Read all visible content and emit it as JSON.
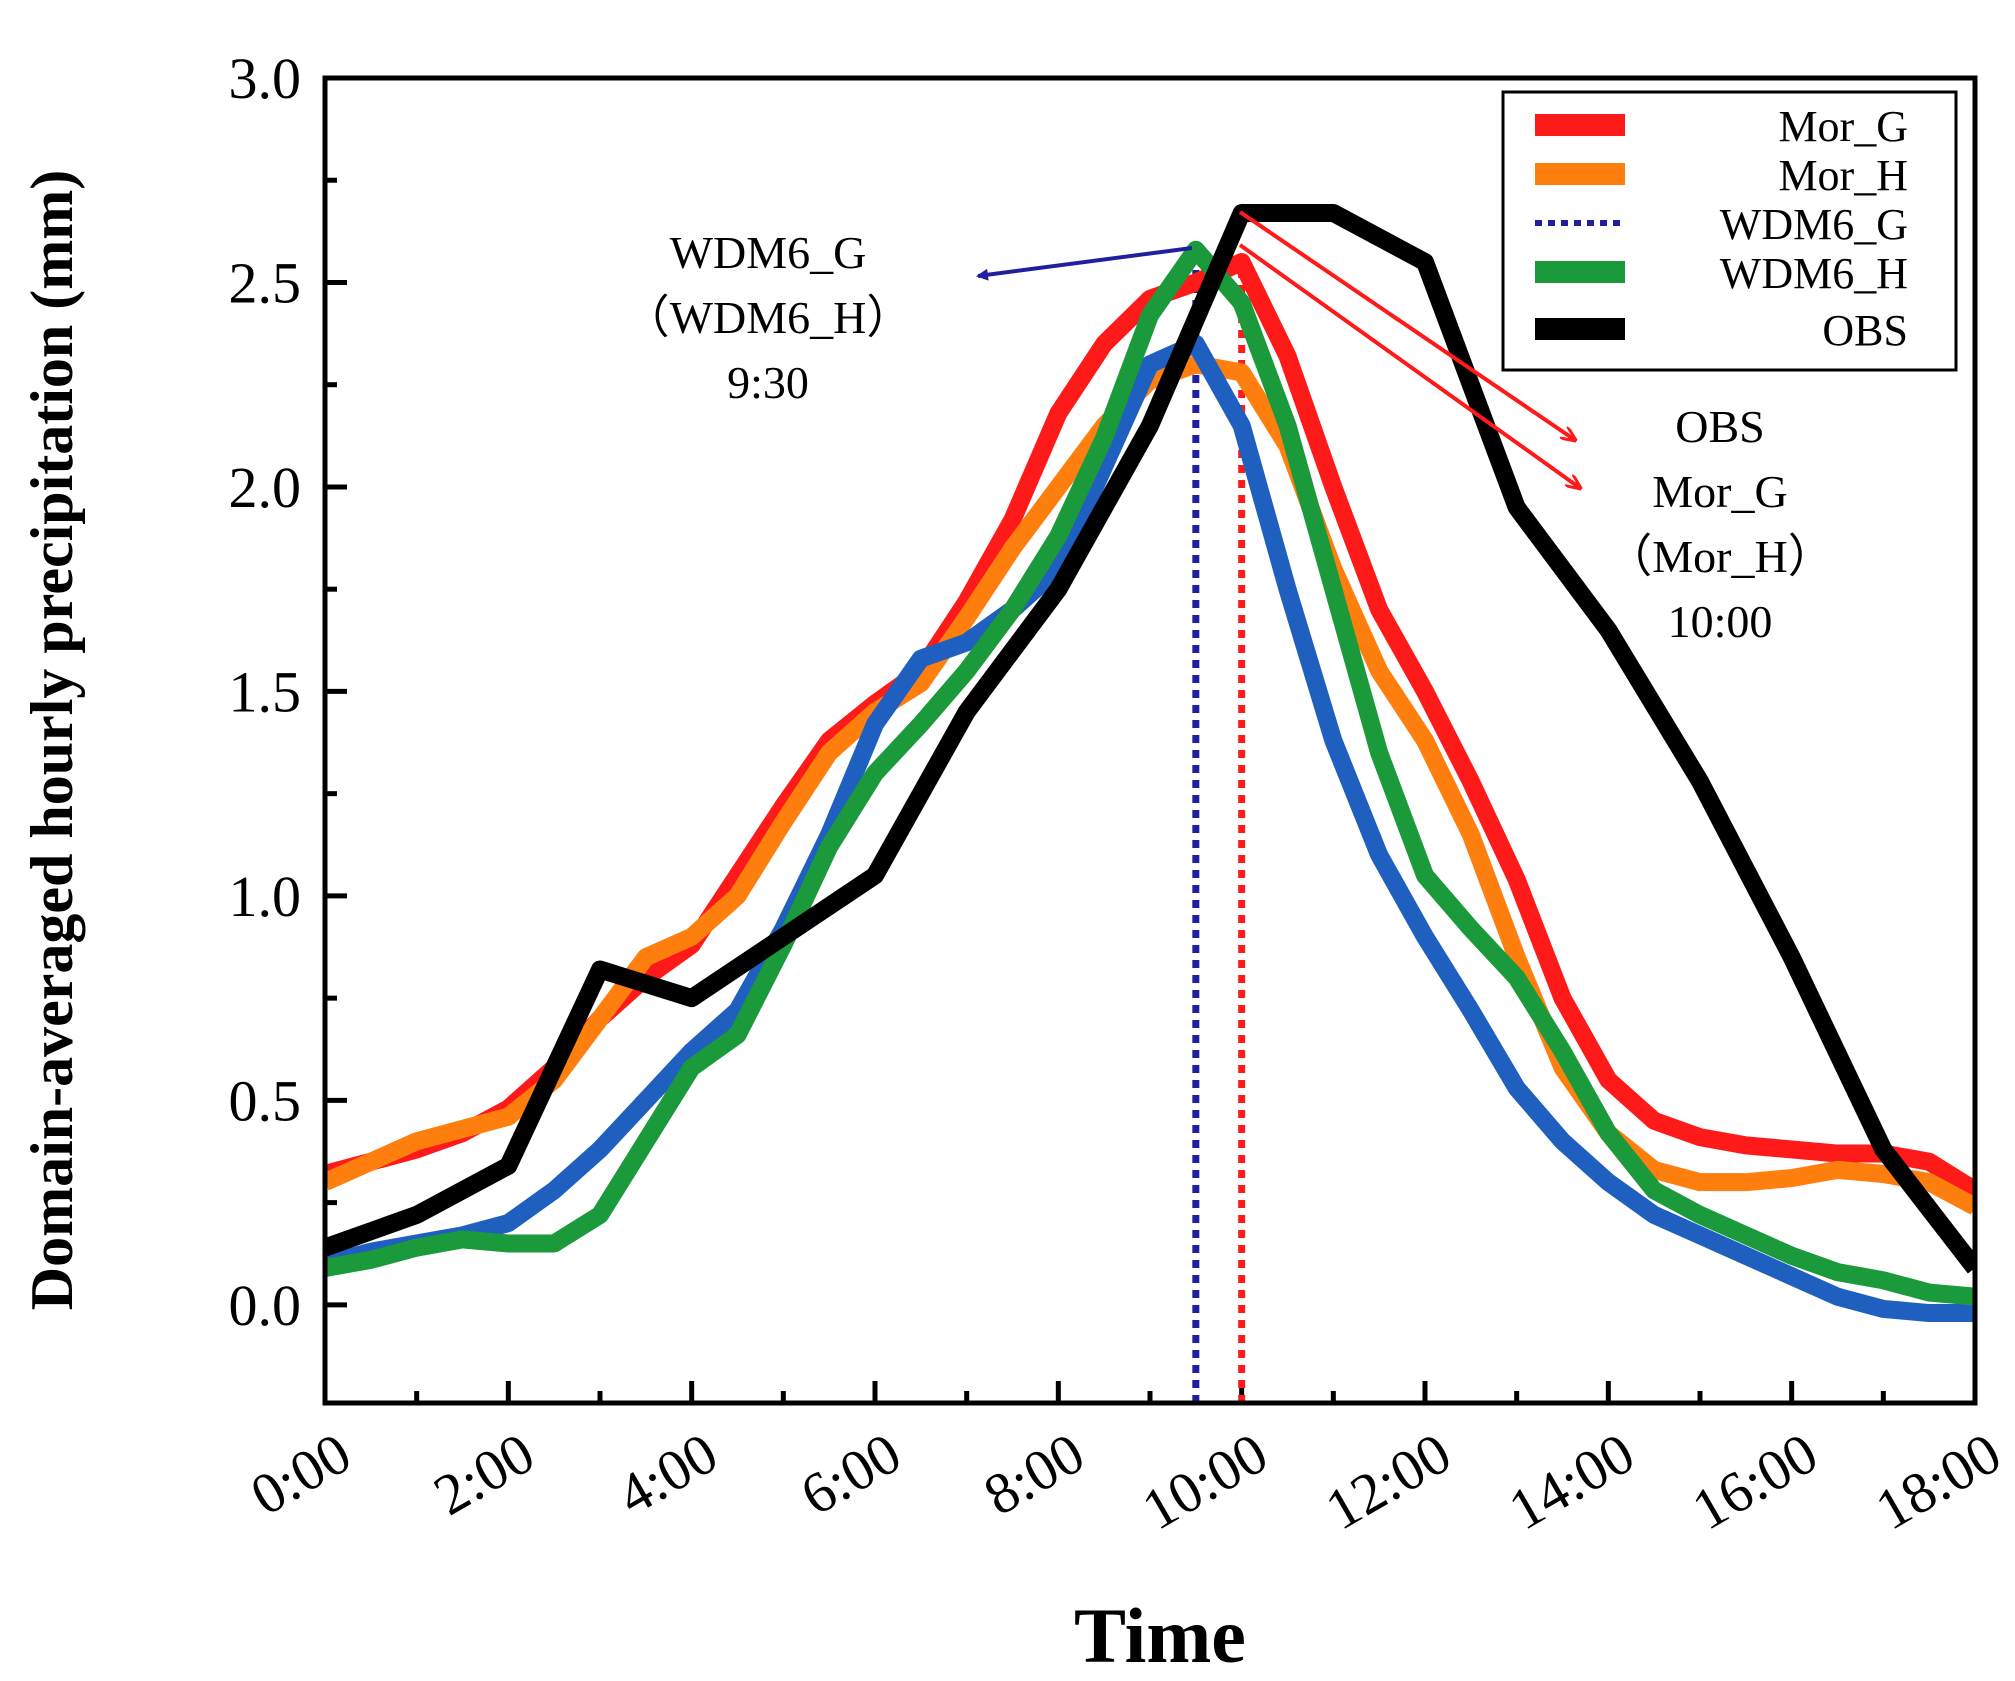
{
  "chart_data": {
    "type": "line",
    "title": "",
    "xlabel": "Time",
    "ylabel": "Domain-averaged hourly precipitation (mm)",
    "xlim": [
      0,
      18
    ],
    "ylim": [
      -0.24,
      3.0
    ],
    "x_tick_labels": [
      "0:00",
      "2:00",
      "4:00",
      "6:00",
      "8:00",
      "10:00",
      "12:00",
      "14:00",
      "16:00",
      "18:00"
    ],
    "y_tick_labels": [
      "0.0",
      "0.5",
      "1.0",
      "1.5",
      "2.0",
      "2.5",
      "3.0"
    ],
    "series": [
      {
        "name": "Mor_G",
        "color": "#ff1a1a",
        "x": [
          0,
          0.5,
          1,
          1.5,
          2,
          2.5,
          3,
          3.5,
          4,
          4.5,
          5,
          5.5,
          6,
          6.5,
          7,
          7.5,
          8,
          8.5,
          9,
          9.5,
          10,
          10.5,
          11,
          11.5,
          12,
          12.5,
          13,
          13.5,
          14,
          14.5,
          15,
          15.5,
          16,
          16.5,
          17,
          17.5,
          18
        ],
        "values": [
          0.32,
          0.35,
          0.38,
          0.42,
          0.48,
          0.58,
          0.7,
          0.8,
          0.88,
          1.05,
          1.22,
          1.38,
          1.47,
          1.55,
          1.72,
          1.92,
          2.18,
          2.35,
          2.46,
          2.5,
          2.55,
          2.32,
          2.0,
          1.7,
          1.5,
          1.28,
          1.04,
          0.75,
          0.55,
          0.45,
          0.41,
          0.39,
          0.38,
          0.37,
          0.37,
          0.35,
          0.28
        ]
      },
      {
        "name": "Mor_H",
        "color": "#ff7f0e",
        "x": [
          0,
          0.5,
          1,
          1.5,
          2,
          2.5,
          3,
          3.5,
          4,
          4.5,
          5,
          5.5,
          6,
          6.5,
          7,
          7.5,
          8,
          8.5,
          9,
          9.5,
          10,
          10.5,
          11,
          11.5,
          12,
          12.5,
          13,
          13.5,
          14,
          14.5,
          15,
          15.5,
          16,
          16.5,
          17,
          17.5,
          18
        ],
        "values": [
          0.3,
          0.35,
          0.4,
          0.43,
          0.46,
          0.55,
          0.7,
          0.85,
          0.9,
          1.0,
          1.18,
          1.35,
          1.45,
          1.52,
          1.68,
          1.85,
          2.0,
          2.15,
          2.26,
          2.3,
          2.28,
          2.1,
          1.8,
          1.55,
          1.38,
          1.15,
          0.85,
          0.58,
          0.42,
          0.33,
          0.3,
          0.3,
          0.31,
          0.33,
          0.32,
          0.3,
          0.24
        ]
      },
      {
        "name": "WDM6_G",
        "color": "#1f5fbf",
        "legend_color": "#1f1f9f",
        "x": [
          0,
          0.5,
          1,
          1.5,
          2,
          2.5,
          3,
          3.5,
          4,
          4.5,
          5,
          5.5,
          6,
          6.5,
          7,
          7.5,
          8,
          8.5,
          9,
          9.5,
          10,
          10.5,
          11,
          11.5,
          12,
          12.5,
          13,
          13.5,
          14,
          14.5,
          15,
          15.5,
          16,
          16.5,
          17,
          17.5,
          18
        ],
        "values": [
          0.1,
          0.13,
          0.15,
          0.17,
          0.2,
          0.28,
          0.38,
          0.5,
          0.62,
          0.72,
          0.92,
          1.15,
          1.42,
          1.58,
          1.62,
          1.7,
          1.8,
          2.05,
          2.3,
          2.35,
          2.15,
          1.75,
          1.38,
          1.1,
          0.9,
          0.72,
          0.53,
          0.4,
          0.3,
          0.22,
          0.17,
          0.12,
          0.07,
          0.02,
          -0.01,
          -0.02,
          -0.02
        ]
      },
      {
        "name": "WDM6_H",
        "color": "#1a9a3a",
        "x": [
          0,
          0.5,
          1,
          1.5,
          2,
          2.5,
          3,
          3.5,
          4,
          4.5,
          5,
          5.5,
          6,
          6.5,
          7,
          7.5,
          8,
          8.5,
          9,
          9.5,
          10,
          10.5,
          11,
          11.5,
          12,
          12.5,
          13,
          13.5,
          14,
          14.5,
          15,
          15.5,
          16,
          16.5,
          17,
          17.5,
          18
        ],
        "values": [
          0.09,
          0.11,
          0.14,
          0.16,
          0.15,
          0.15,
          0.22,
          0.4,
          0.58,
          0.66,
          0.88,
          1.12,
          1.3,
          1.42,
          1.55,
          1.7,
          1.88,
          2.12,
          2.42,
          2.58,
          2.45,
          2.15,
          1.75,
          1.35,
          1.05,
          0.92,
          0.8,
          0.62,
          0.42,
          0.28,
          0.22,
          0.17,
          0.12,
          0.08,
          0.06,
          0.03,
          0.02
        ]
      },
      {
        "name": "OBS",
        "color": "#000000",
        "x": [
          0,
          1,
          2,
          3,
          4,
          5,
          6,
          7,
          8,
          9,
          10,
          11,
          12,
          13,
          14,
          15,
          16,
          17,
          18
        ],
        "values": [
          0.14,
          0.22,
          0.34,
          0.82,
          0.75,
          0.9,
          1.05,
          1.45,
          1.75,
          2.15,
          2.67,
          2.67,
          2.55,
          1.95,
          1.65,
          1.28,
          0.85,
          0.38,
          0.09
        ]
      }
    ],
    "reference_lines": [
      {
        "x": 9.5,
        "color": "#1f1f9f",
        "style": "dotted"
      },
      {
        "x": 10,
        "color": "#ff1a1a",
        "style": "dotted"
      }
    ],
    "annotations": [
      {
        "lines": [
          "WDM6_G",
          "（WDM6_H）",
          "9:30"
        ],
        "color": "#1f1f9f"
      },
      {
        "lines": [
          "OBS",
          "Mor_G",
          "（Mor_H）",
          "10:00"
        ],
        "color": "#ff1a1a"
      }
    ],
    "legend_position": "top-right"
  }
}
